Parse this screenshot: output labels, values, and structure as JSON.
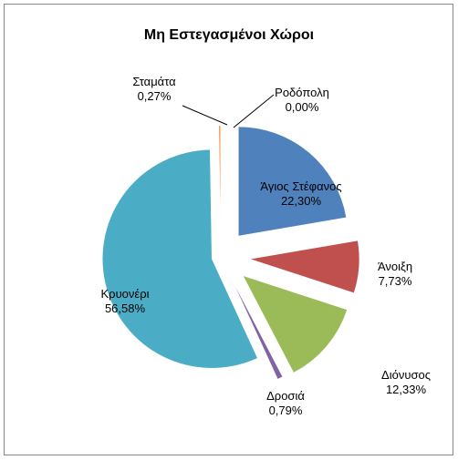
{
  "chart_data": {
    "type": "pie",
    "title": "Μη Εστεγασμένοι Χώροι",
    "categories": [
      "Άγιος Στέφανος",
      "Άνοιξη",
      "Διόνυσος",
      "Δροσιά",
      "Κρυονέρι",
      "Σταμάτα",
      "Ροδόπολη"
    ],
    "values": [
      22.3,
      7.73,
      12.33,
      0.79,
      56.58,
      0.27,
      0.0
    ],
    "value_labels": [
      "22,30%",
      "7,73%",
      "12,33%",
      "0,79%",
      "56,58%",
      "0,27%",
      "0,00%"
    ],
    "colors": [
      "#4F81BD",
      "#C0504D",
      "#9BBB59",
      "#8064A2",
      "#4BACC6",
      "#F79646",
      "#2C4D75"
    ]
  }
}
